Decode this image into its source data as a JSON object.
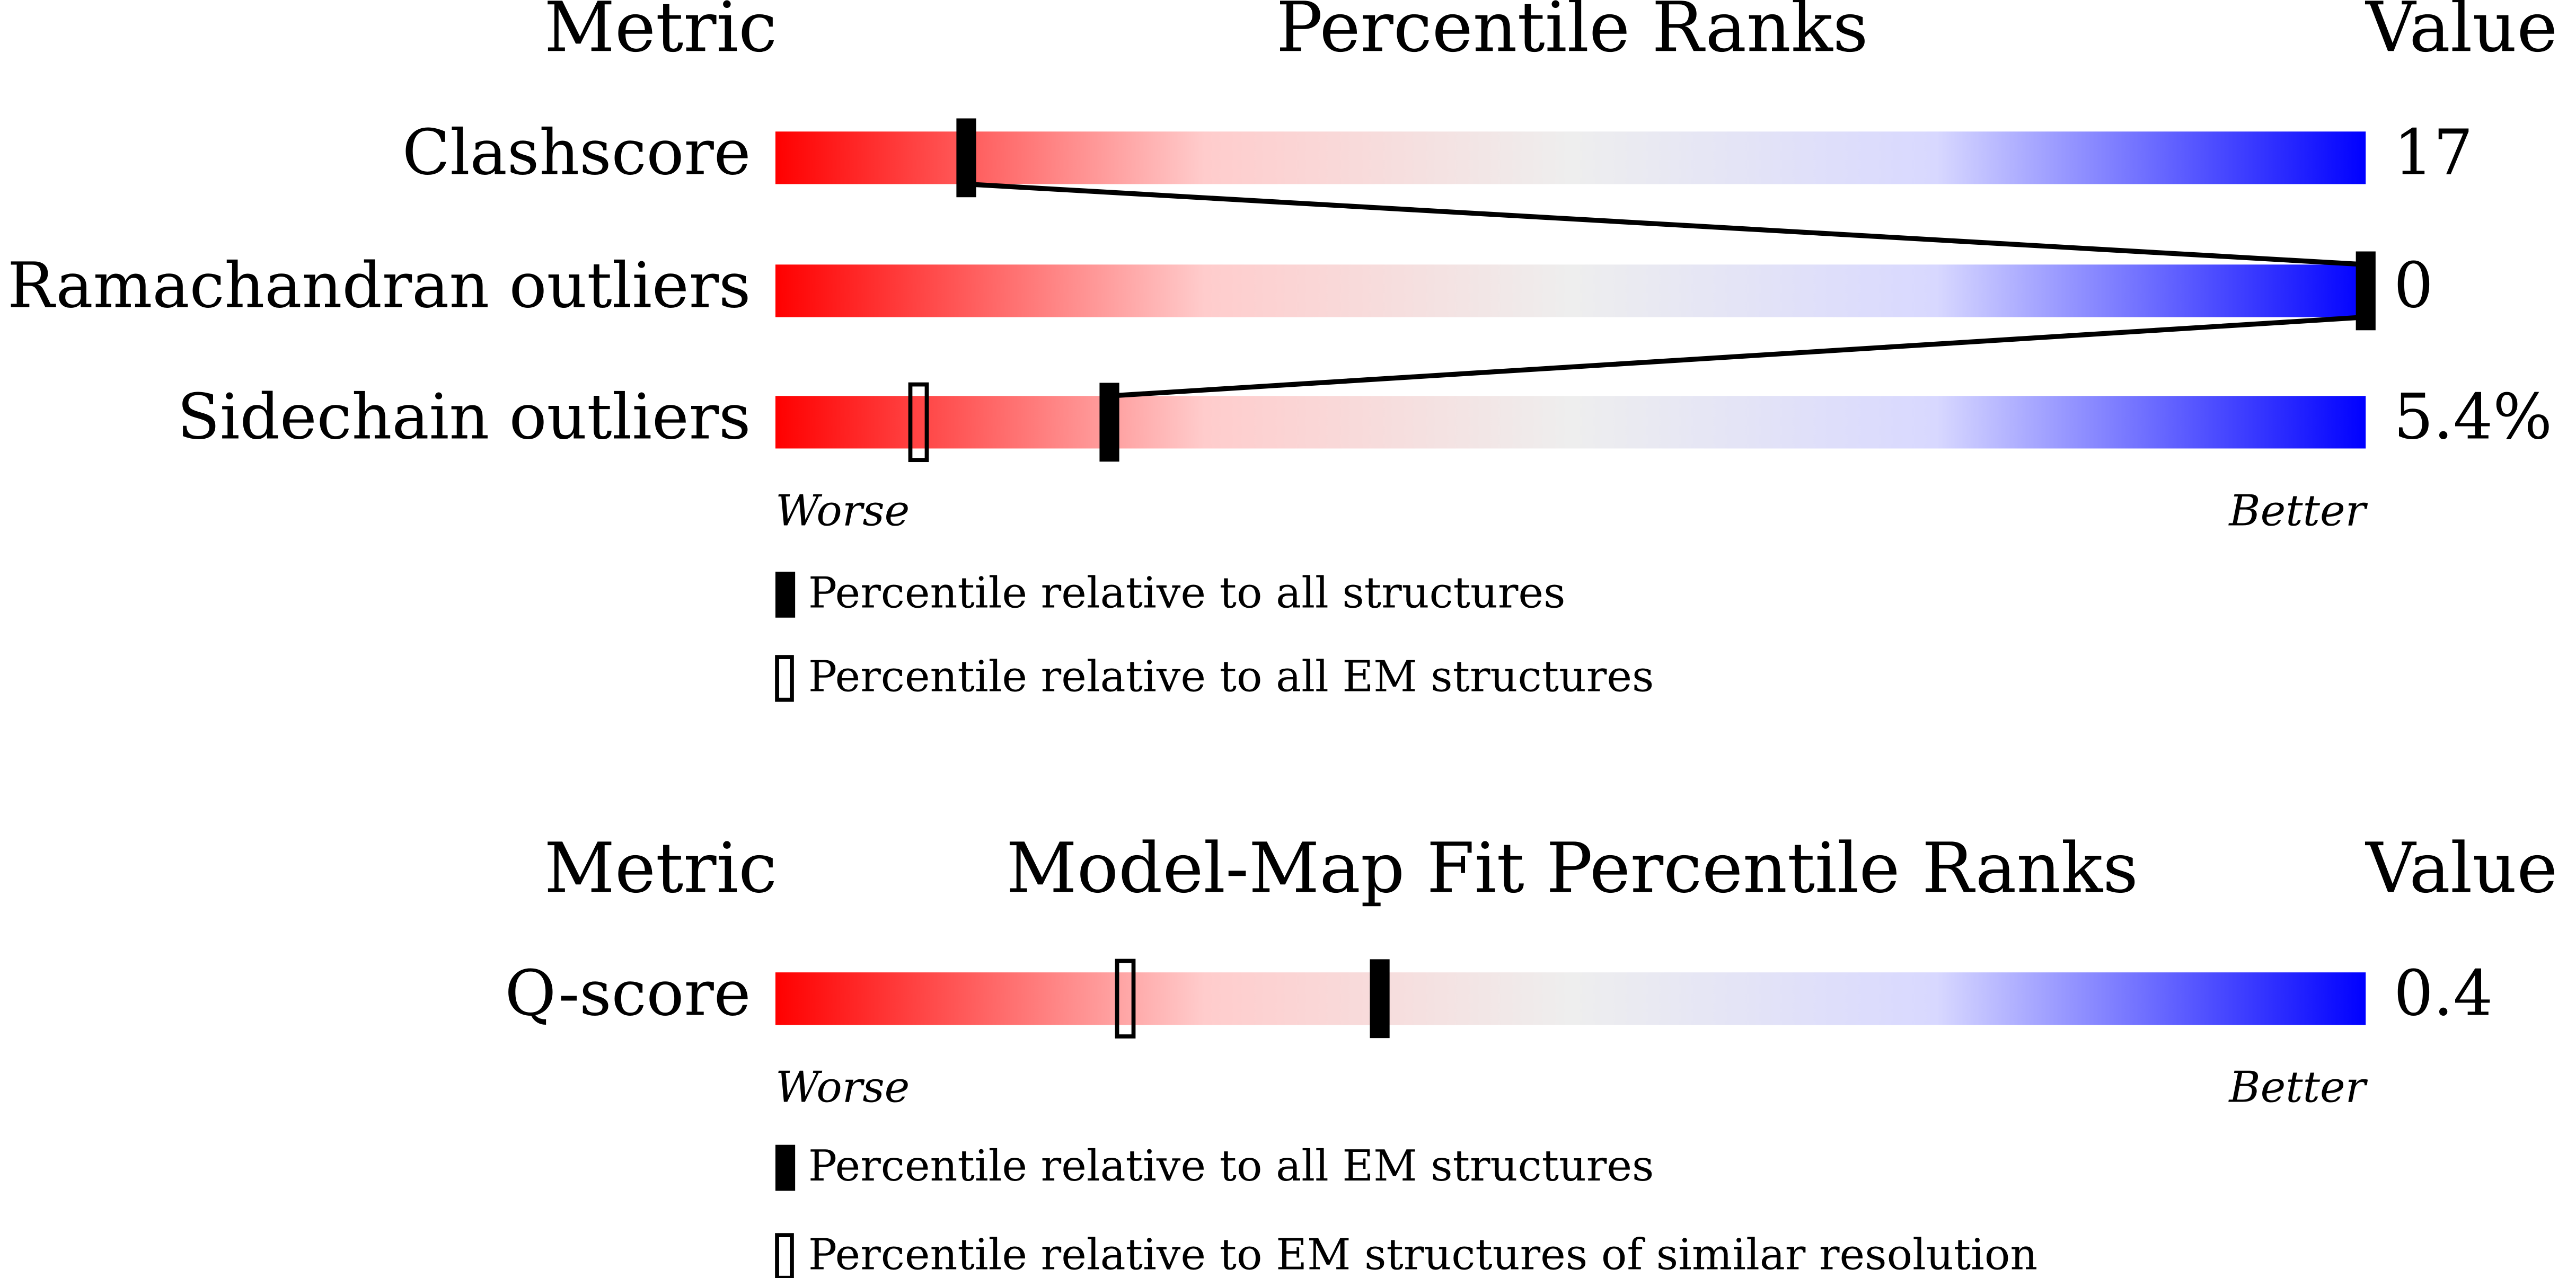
{
  "chart_data": [
    {
      "type": "slider",
      "metric_header": "Metric",
      "title": "Percentile Ranks",
      "value_header": "Value",
      "categories": [
        "Clashscore",
        "Ramachandran outliers",
        "Sidechain outliers"
      ],
      "metric_values": [
        "17",
        "0",
        "5.4%"
      ],
      "xlim": [
        0,
        100
      ],
      "low_label": "Worse",
      "high_label": "Better",
      "series": [
        {
          "name": "Percentile relative to all structures",
          "style": "filled",
          "color": "#000000",
          "values": [
            12,
            100,
            21
          ]
        },
        {
          "name": "Percentile relative to all EM structures",
          "style": "open",
          "color": "#000000",
          "values": [
            null,
            null,
            9
          ]
        }
      ]
    },
    {
      "type": "slider",
      "metric_header": "Metric",
      "title": "Model-Map Fit Percentile Ranks",
      "value_header": "Value",
      "categories": [
        "Q-score"
      ],
      "metric_values": [
        "0.4"
      ],
      "xlim": [
        0,
        100
      ],
      "low_label": "Worse",
      "high_label": "Better",
      "series": [
        {
          "name": "Percentile relative to all EM structures",
          "style": "filled",
          "color": "#000000",
          "values": [
            38
          ]
        },
        {
          "name": "Percentile relative to EM structures of similar resolution",
          "style": "open",
          "color": "#000000",
          "values": [
            22
          ]
        }
      ]
    }
  ]
}
